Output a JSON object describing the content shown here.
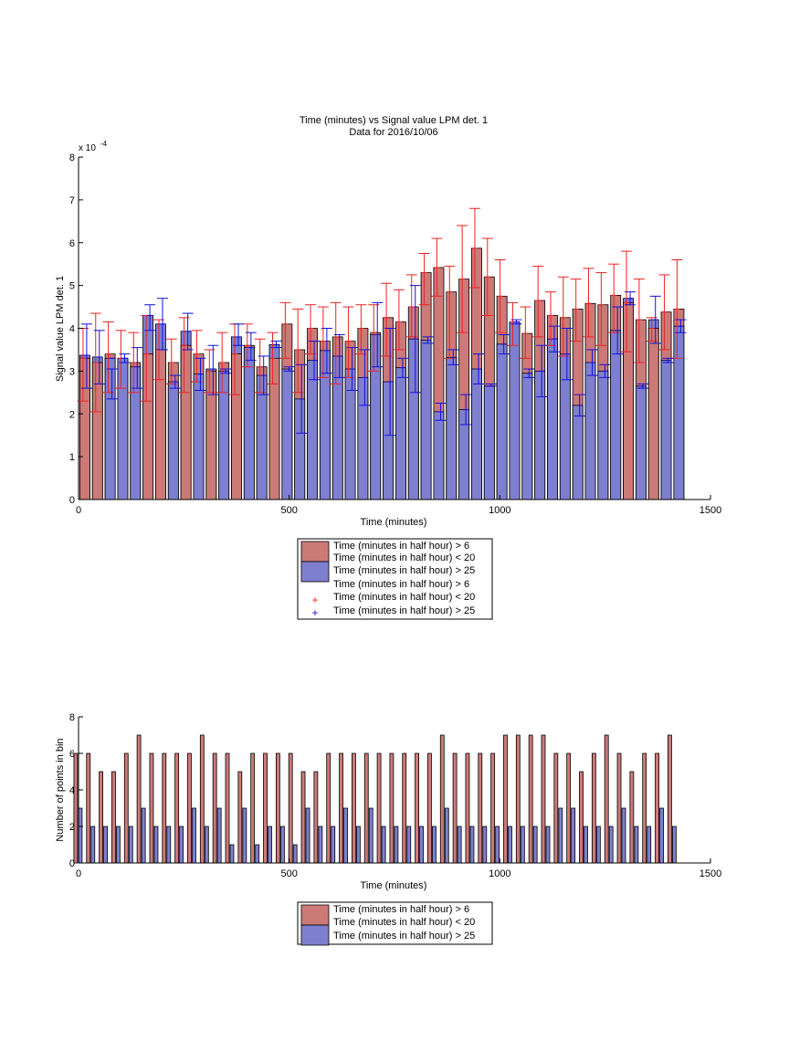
{
  "colors": {
    "red_bar": "#cc7a78",
    "blue_bar": "#7f7fd0",
    "red_err": "#ee2222",
    "blue_err": "#1111dd",
    "axis": "#000000"
  },
  "chart_data": [
    {
      "type": "bar",
      "title": "Time (minutes) vs Signal value LPM det. 1",
      "subtitle": "Data for 2016/10/06",
      "xlabel": "Time (minutes)",
      "ylabel": "Signal value LPM det. 1",
      "exponent_label": "x 10",
      "exponent_power": "-4",
      "xlim": [
        0,
        1500
      ],
      "ylim": [
        0,
        8
      ],
      "xticks": [
        0,
        500,
        1000,
        1500
      ],
      "yticks": [
        0,
        1,
        2,
        3,
        4,
        5,
        6,
        7,
        8
      ],
      "bar_width_minutes": 24,
      "x": [
        15,
        45,
        75,
        105,
        135,
        165,
        195,
        225,
        255,
        285,
        315,
        345,
        375,
        405,
        435,
        465,
        495,
        525,
        555,
        585,
        615,
        645,
        675,
        705,
        735,
        765,
        795,
        825,
        855,
        885,
        915,
        945,
        975,
        1005,
        1035,
        1065,
        1095,
        1125,
        1155,
        1185,
        1215,
        1245,
        1275,
        1305,
        1335,
        1365,
        1395,
        1425
      ],
      "series": [
        {
          "name": "Time (minutes in half hour) > 6",
          "name_line2": "Time (minutes in half hour) < 20",
          "values": [
            3.3,
            3.2,
            3.4,
            3.3,
            3.2,
            3.4,
            3.5,
            3.2,
            3.6,
            3.4,
            3.0,
            3.2,
            3.4,
            3.6,
            3.1,
            3.3,
            4.1,
            3.5,
            4.0,
            3.7,
            3.8,
            3.7,
            4.0,
            3.9,
            4.25,
            4.15,
            4.5,
            5.3,
            5.42,
            4.85,
            5.15,
            5.87,
            5.2,
            4.75,
            4.15,
            3.88,
            4.65,
            4.3,
            4.25,
            4.45,
            4.58,
            4.55,
            4.77,
            4.6,
            4.2,
            4.0,
            4.38,
            4.45
          ],
          "err_low": [
            2.3,
            2.05,
            2.5,
            2.6,
            2.5,
            2.3,
            2.8,
            2.7,
            2.5,
            2.75,
            2.5,
            2.5,
            2.45,
            3.1,
            2.5,
            2.7,
            3.3,
            2.5,
            3.4,
            2.85,
            2.7,
            2.85,
            3.4,
            3.0,
            3.35,
            3.5,
            3.8,
            4.55,
            4.75,
            3.3,
            3.9,
            4.95,
            4.3,
            3.9,
            3.6,
            3.3,
            3.8,
            3.6,
            3.35,
            3.7,
            3.8,
            3.6,
            3.9,
            3.45,
            3.2,
            3.7,
            3.5,
            3.3
          ],
          "err_high": [
            4.0,
            4.35,
            4.15,
            3.95,
            3.9,
            4.3,
            4.2,
            3.75,
            4.25,
            3.95,
            3.5,
            3.9,
            4.1,
            4.1,
            3.75,
            3.9,
            4.6,
            4.45,
            4.55,
            4.5,
            4.6,
            4.5,
            4.55,
            4.55,
            5.05,
            4.9,
            5.25,
            5.75,
            6.1,
            5.45,
            6.4,
            6.8,
            6.1,
            5.6,
            4.6,
            4.5,
            5.45,
            4.85,
            5.2,
            5.15,
            5.4,
            5.3,
            5.5,
            5.8,
            5.15,
            4.25,
            5.25,
            5.6
          ]
        },
        {
          "name": "Time (minutes in half hour) > 25",
          "values": [
            3.37,
            3.33,
            3.3,
            3.3,
            3.1,
            4.3,
            4.1,
            2.75,
            3.93,
            2.93,
            3.05,
            3.0,
            3.8,
            3.55,
            2.9,
            3.62,
            3.05,
            2.35,
            3.25,
            3.48,
            3.35,
            3.05,
            2.85,
            3.85,
            2.75,
            3.08,
            3.75,
            3.72,
            2.05,
            3.32,
            2.1,
            3.05,
            2.65,
            3.63,
            4.15,
            2.95,
            3.0,
            3.75,
            3.4,
            2.2,
            3.2,
            3.0,
            3.95,
            4.7,
            2.65,
            4.2,
            3.25,
            4.05
          ],
          "err_low": [
            2.6,
            2.7,
            2.35,
            3.2,
            2.6,
            3.95,
            3.5,
            2.6,
            3.5,
            2.55,
            2.45,
            2.95,
            3.6,
            3.25,
            2.45,
            3.55,
            3.0,
            1.55,
            2.8,
            2.95,
            2.85,
            2.55,
            2.2,
            3.1,
            1.5,
            2.85,
            2.5,
            3.65,
            1.85,
            3.15,
            1.75,
            2.7,
            2.65,
            3.4,
            4.1,
            2.85,
            2.4,
            3.45,
            2.8,
            1.95,
            2.9,
            2.85,
            3.4,
            4.55,
            2.6,
            3.65,
            3.2,
            3.9
          ],
          "err_high": [
            4.1,
            3.95,
            3.05,
            3.4,
            3.55,
            4.55,
            4.7,
            2.9,
            4.35,
            3.3,
            3.6,
            3.05,
            4.1,
            3.9,
            3.35,
            3.7,
            3.1,
            3.15,
            3.7,
            4.0,
            3.85,
            3.55,
            3.5,
            4.6,
            4.0,
            3.3,
            5.0,
            3.8,
            2.25,
            3.5,
            2.45,
            3.4,
            2.7,
            3.85,
            4.2,
            3.05,
            3.6,
            4.05,
            4.0,
            2.45,
            3.5,
            3.15,
            4.5,
            4.85,
            2.7,
            4.75,
            3.3,
            4.2
          ]
        }
      ],
      "legend_placement": "below",
      "legend": [
        "Time (minutes in half hour) > 6",
        "Time (minutes in half hour) < 20",
        "Time (minutes in half hour) > 25",
        "Time (minutes in half hour) > 6",
        "Time (minutes in half hour) < 20",
        "Time (minutes in half hour) > 25"
      ]
    },
    {
      "type": "bar",
      "xlabel": "Time (minutes)",
      "ylabel": "Number of points in bin",
      "xlim": [
        0,
        1500
      ],
      "ylim": [
        0,
        8
      ],
      "xticks": [
        0,
        500,
        1000,
        1500
      ],
      "yticks": [
        0,
        2,
        4,
        6,
        8
      ],
      "x": [
        15,
        45,
        75,
        105,
        135,
        165,
        195,
        225,
        255,
        285,
        315,
        345,
        375,
        405,
        435,
        465,
        495,
        525,
        555,
        585,
        615,
        645,
        675,
        705,
        735,
        765,
        795,
        825,
        855,
        885,
        915,
        945,
        975,
        1005,
        1035,
        1065,
        1095,
        1125,
        1155,
        1185,
        1215,
        1245,
        1275,
        1305,
        1335,
        1365,
        1395,
        1425
      ],
      "series": [
        {
          "name": "Time (minutes in half hour) > 6",
          "name_line2": "Time (minutes in half hour) < 20",
          "values": [
            6,
            6,
            5,
            5,
            6,
            7,
            6,
            6,
            6,
            6,
            7,
            6,
            6,
            5,
            6,
            6,
            6,
            6,
            5,
            5,
            6,
            6,
            6,
            6,
            6,
            6,
            6,
            6,
            6,
            7,
            6,
            6,
            6,
            6,
            7,
            7,
            7,
            7,
            6,
            6,
            5,
            6,
            7,
            6,
            5,
            6,
            6,
            7
          ]
        },
        {
          "name": "Time (minutes in half hour) > 25",
          "values": [
            3,
            2,
            2,
            2,
            2,
            3,
            2,
            2,
            2,
            3,
            2,
            3,
            1,
            3,
            1,
            2,
            2,
            1,
            3,
            2,
            2,
            3,
            2,
            3,
            2,
            2,
            2,
            2,
            2,
            3,
            2,
            2,
            2,
            2,
            2,
            2,
            2,
            2,
            3,
            3,
            2,
            2,
            2,
            3,
            2,
            2,
            3,
            2
          ]
        }
      ],
      "legend_placement": "below",
      "legend": [
        "Time (minutes in half hour) > 6",
        "Time (minutes in half hour) < 20",
        "Time (minutes in half hour) > 25"
      ]
    }
  ]
}
